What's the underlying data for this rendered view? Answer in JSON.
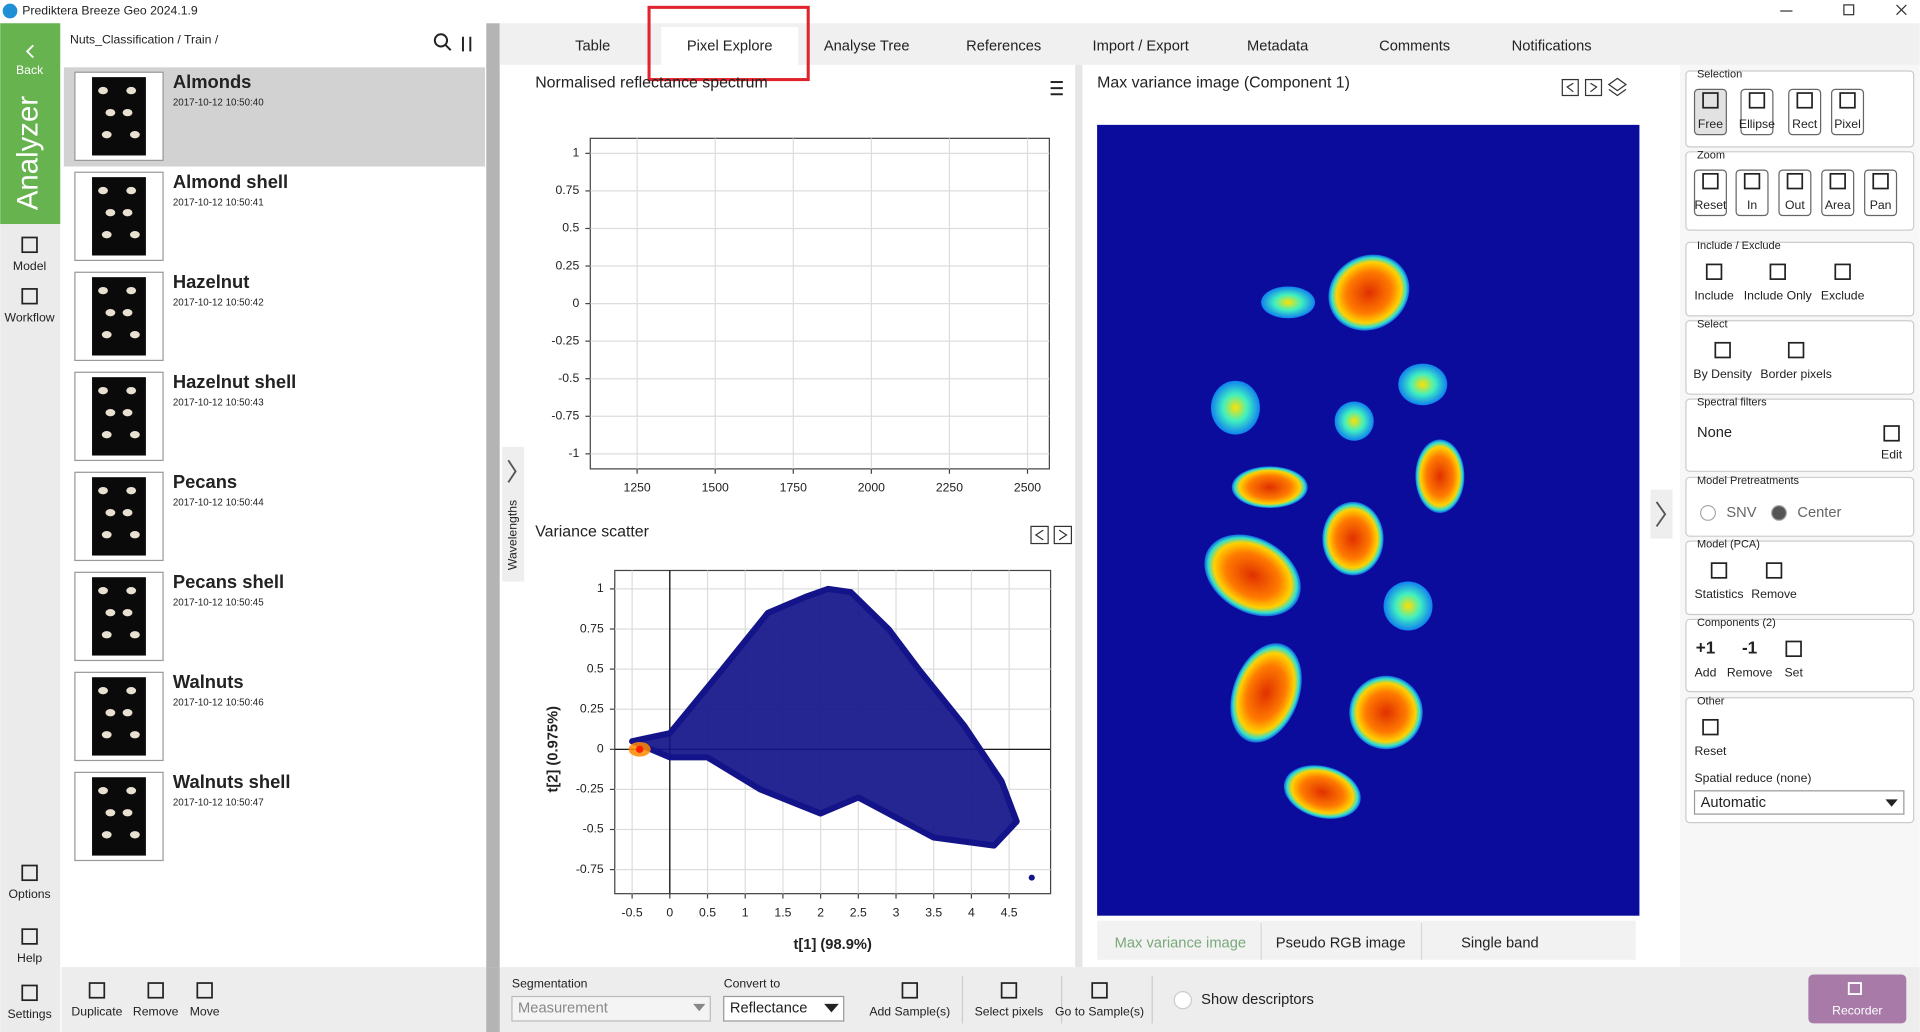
{
  "window": {
    "title": "Prediktera Breeze Geo 2024.1.9"
  },
  "sidebar": {
    "back": "Back",
    "app": "Analyzer",
    "items": [
      "Model",
      "Workflow"
    ],
    "bottom": [
      "Options",
      "Help",
      "Settings"
    ]
  },
  "samples": {
    "path": "Nuts_Classification / Train /",
    "selected": 0,
    "items": [
      {
        "name": "Almonds",
        "date": "2017-10-12 10:50:40"
      },
      {
        "name": "Almond shell",
        "date": "2017-10-12 10:50:41"
      },
      {
        "name": "Hazelnut",
        "date": "2017-10-12 10:50:42"
      },
      {
        "name": "Hazelnut shell",
        "date": "2017-10-12 10:50:43"
      },
      {
        "name": "Pecans",
        "date": "2017-10-12 10:50:44"
      },
      {
        "name": "Pecans shell",
        "date": "2017-10-12 10:50:45"
      },
      {
        "name": "Walnuts",
        "date": "2017-10-12 10:50:46"
      },
      {
        "name": "Walnuts shell",
        "date": "2017-10-12 10:50:47"
      }
    ],
    "actions": [
      "Duplicate",
      "Remove",
      "Move"
    ]
  },
  "tabs": {
    "items": [
      "Table",
      "Pixel Explore",
      "Analyse Tree",
      "References",
      "Import / Export",
      "Metadata",
      "Comments",
      "Notifications"
    ],
    "active": 1
  },
  "side_label": "Wavelengths",
  "spectrum": {
    "title": "Normalised reflectance spectrum",
    "xlim": [
      1100,
      2570
    ],
    "ylim": [
      -1.1,
      1.1
    ],
    "xticks": [
      1250,
      1500,
      1750,
      2000,
      2250,
      2500
    ],
    "yticks": [
      -1,
      -0.75,
      -0.5,
      -0.25,
      0,
      0.25,
      0.5,
      0.75,
      1
    ],
    "grid": true
  },
  "scatter": {
    "title": "Variance scatter",
    "xlabel": "t[1] (98.9%)",
    "ylabel": "t[2] (0.975%)",
    "xlim": [
      -0.73,
      5.05
    ],
    "ylim": [
      -0.9,
      1.115
    ],
    "xticks": [
      -0.5,
      0,
      0.5,
      1,
      1.5,
      2,
      2.5,
      3,
      3.5,
      4,
      4.5
    ],
    "yticks": [
      -0.75,
      -0.5,
      -0.25,
      0,
      0.25,
      0.5,
      0.75,
      1
    ],
    "grid": true,
    "color": "#14148a",
    "cloud": {
      "x": [
        -0.5,
        0,
        0.7,
        1.3,
        1.8,
        2.1,
        2.4,
        2.9,
        3.3,
        3.9,
        4.4,
        4.6,
        4.3,
        3.5,
        2.5,
        2,
        1.2,
        0.5,
        0
      ],
      "y": [
        0.05,
        0.1,
        0.5,
        0.85,
        0.95,
        1,
        0.98,
        0.75,
        0.5,
        0.15,
        -0.2,
        -0.45,
        -0.6,
        -0.55,
        -0.3,
        -0.4,
        -0.25,
        -0.05,
        -0.05
      ]
    },
    "points": {
      "x": [
        4.8
      ],
      "y": [
        -0.8
      ]
    }
  },
  "image": {
    "title": "Max variance image (Component  1)",
    "tabs": [
      "Max variance image",
      "Pseudo RGB image",
      "Single band"
    ],
    "active": 0
  },
  "right_panel": {
    "groups": [
      {
        "title": "Selection",
        "buttons": [
          {
            "label": "Free"
          },
          {
            "label": "Ellipse"
          },
          {
            "label": "Rect"
          },
          {
            "label": "Pixel"
          }
        ]
      },
      {
        "title": "Zoom",
        "buttons": [
          {
            "label": "Reset"
          },
          {
            "label": "In"
          },
          {
            "label": "Out"
          },
          {
            "label": "Area"
          },
          {
            "label": "Pan"
          }
        ]
      },
      {
        "title": "Include / Exclude",
        "buttons": [
          {
            "label": "Include"
          },
          {
            "label": "Include Only"
          },
          {
            "label": "Exclude"
          }
        ]
      },
      {
        "title": "Select",
        "buttons": [
          {
            "label": "By Density"
          },
          {
            "label": "Border pixels"
          }
        ]
      },
      {
        "title": "Spectral filters",
        "value": "None",
        "buttons": [
          {
            "label": "Edit"
          }
        ]
      },
      {
        "title": "Model Pretreatments",
        "options": [
          "SNV",
          "Center"
        ],
        "checked": [
          false,
          true
        ]
      },
      {
        "title": "Model (PCA)",
        "buttons": [
          {
            "label": "Statistics"
          },
          {
            "label": "Remove"
          }
        ]
      },
      {
        "title": "Components (2)",
        "buttons": [
          {
            "icon": "+1",
            "label": "Add"
          },
          {
            "icon": "-1",
            "label": "Remove"
          },
          {
            "label": "Set"
          }
        ]
      },
      {
        "title": "Other",
        "buttons": [
          {
            "label": "Reset"
          }
        ],
        "field": "Spatial reduce (none)",
        "dropdown": "Automatic"
      }
    ]
  },
  "bottom_bar": {
    "segmentation": {
      "label": "Segmentation",
      "value": "Measurement"
    },
    "convert": {
      "label": "Convert to",
      "value": "Reflectance"
    },
    "buttons": [
      "Add Sample(s)",
      "Select pixels",
      "Go to Sample(s)"
    ],
    "checkbox": "Show descriptors",
    "recorder": "Recorder"
  }
}
